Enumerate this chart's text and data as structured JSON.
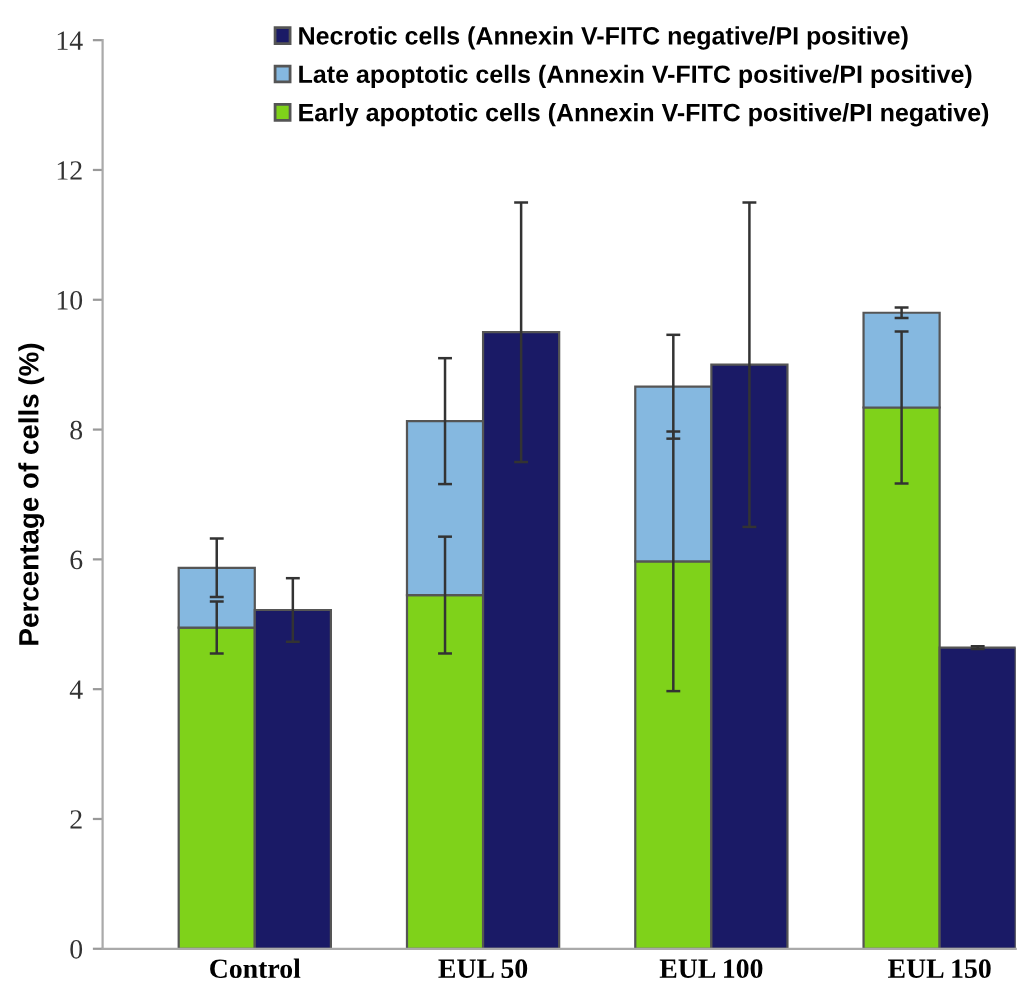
{
  "chart_data": {
    "type": "bar",
    "stacked": true,
    "ylabel": "Percentage of cells (%)",
    "categories": [
      "Control",
      null,
      null,
      "EUL 50",
      null,
      null,
      "EUL 100",
      null,
      null,
      "EUL 150",
      null
    ],
    "series": [
      {
        "name": "Early apoptotic cells (Annexin V-FITC positive/PI negative)",
        "color": "#7fd21a",
        "values": [
          4.95,
          null,
          null,
          5.45,
          null,
          null,
          5.97,
          null,
          null,
          8.34,
          null
        ],
        "errors": [
          0.4,
          null,
          null,
          0.9,
          null,
          null,
          2.0,
          null,
          null,
          1.17,
          null
        ]
      },
      {
        "name": "Late apoptotic cells (Annexin V-FITC positive/PI positive)",
        "color": "#85b8e0",
        "values": [
          0.92,
          null,
          null,
          2.68,
          null,
          null,
          2.69,
          null,
          null,
          1.46,
          null
        ],
        "errors": [
          0.45,
          null,
          null,
          0.97,
          null,
          null,
          0.8,
          null,
          null,
          0.08,
          null
        ]
      },
      {
        "name": "Necrotic cells (Annexin V-FITC negative/PI positive)",
        "color": "#1a1a66",
        "values": [
          null,
          5.22,
          null,
          null,
          9.5,
          null,
          null,
          9.0,
          null,
          null,
          4.64
        ],
        "errors": [
          null,
          0.49,
          null,
          null,
          2.0,
          null,
          null,
          2.5,
          null,
          null,
          0.02
        ]
      }
    ],
    "ylim": [
      0,
      14
    ],
    "yticks": [
      0,
      2,
      4,
      6,
      8,
      10,
      12,
      14
    ],
    "grid": false,
    "legend": "top"
  }
}
